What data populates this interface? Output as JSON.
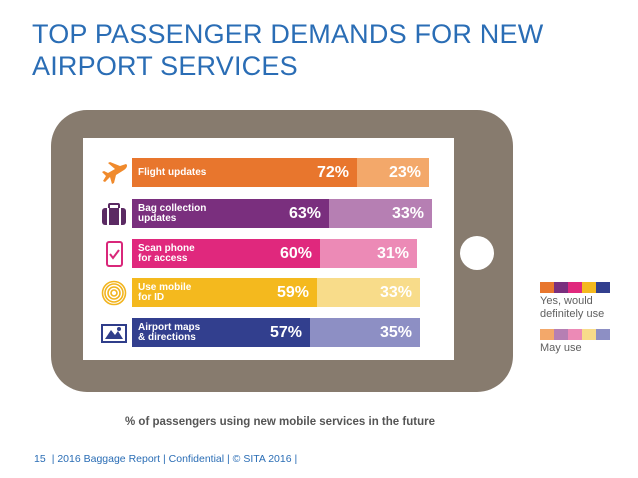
{
  "title": "TOP PASSENGER DEMANDS FOR NEW AIRPORT SERVICES",
  "chart_data": {
    "type": "bar",
    "orientation": "horizontal",
    "stacked": true,
    "categories": [
      "Flight updates",
      "Bag collection\nupdates",
      "Scan phone\nfor access",
      "Use mobile\nfor ID",
      "Airport maps\n& directions"
    ],
    "series": [
      {
        "name": "Yes, would definitely use",
        "values": [
          72,
          63,
          60,
          59,
          57
        ],
        "labels": [
          "72%",
          "63%",
          "60%",
          "59%",
          "57%"
        ]
      },
      {
        "name": "May use",
        "values": [
          23,
          33,
          31,
          33,
          35
        ],
        "labels": [
          "23%",
          "33%",
          "31%",
          "33%",
          "35%"
        ]
      }
    ],
    "xlim": [
      0,
      95
    ],
    "colors_primary": [
      "#e8762d",
      "#7a2f7e",
      "#e0287d",
      "#f4b91e",
      "#323f8e"
    ],
    "colors_secondary": [
      "#f3a86a",
      "#b67fb3",
      "#ec8ab6",
      "#f8dc8a",
      "#8d8fc4"
    ],
    "icons": [
      "airplane-icon",
      "suitcase-icon",
      "phone-scan-icon",
      "fingerprint-icon",
      "map-icon"
    ],
    "caption": "% of passengers using new mobile services in the future",
    "legend": {
      "placement": "right",
      "primary_label": "Yes, would\ndefinitely use",
      "secondary_label": "May use"
    }
  },
  "footer": {
    "page_number": "15",
    "text": "| 2016 Baggage Report | Confidential | © SITA 2016 |"
  }
}
